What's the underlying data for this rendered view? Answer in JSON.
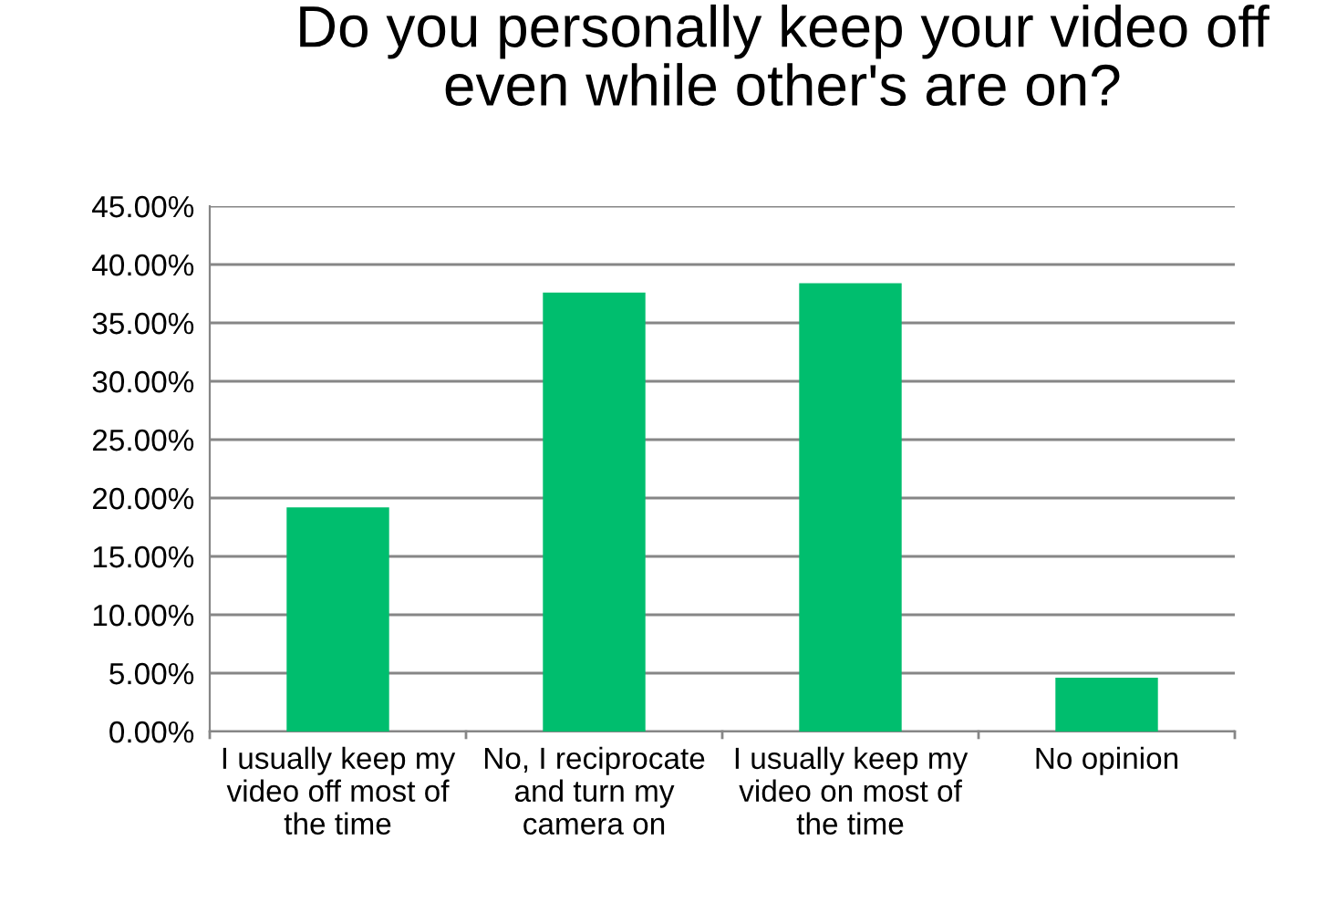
{
  "chart_data": {
    "type": "bar",
    "title": "Do you personally keep your video off\neven while other's are on?",
    "categories": [
      "I usually keep my\nvideo off most of\nthe time",
      "No, I reciprocate\nand turn my\ncamera on",
      "I usually keep my\nvideo on most of\nthe time",
      "No opinion"
    ],
    "values": [
      19.2,
      37.6,
      38.4,
      4.6
    ],
    "color": "#00be6e",
    "ylim": [
      0,
      45
    ],
    "yticks": [
      {
        "value": 0,
        "label": "0.00%"
      },
      {
        "value": 5,
        "label": "5.00%"
      },
      {
        "value": 10,
        "label": "10.00%"
      },
      {
        "value": 15,
        "label": "15.00%"
      },
      {
        "value": 20,
        "label": "20.00%"
      },
      {
        "value": 25,
        "label": "25.00%"
      },
      {
        "value": 30,
        "label": "30.00%"
      },
      {
        "value": 35,
        "label": "35.00%"
      },
      {
        "value": 40,
        "label": "40.00%"
      },
      {
        "value": 45,
        "label": "45.00%"
      }
    ],
    "grid": "y"
  }
}
